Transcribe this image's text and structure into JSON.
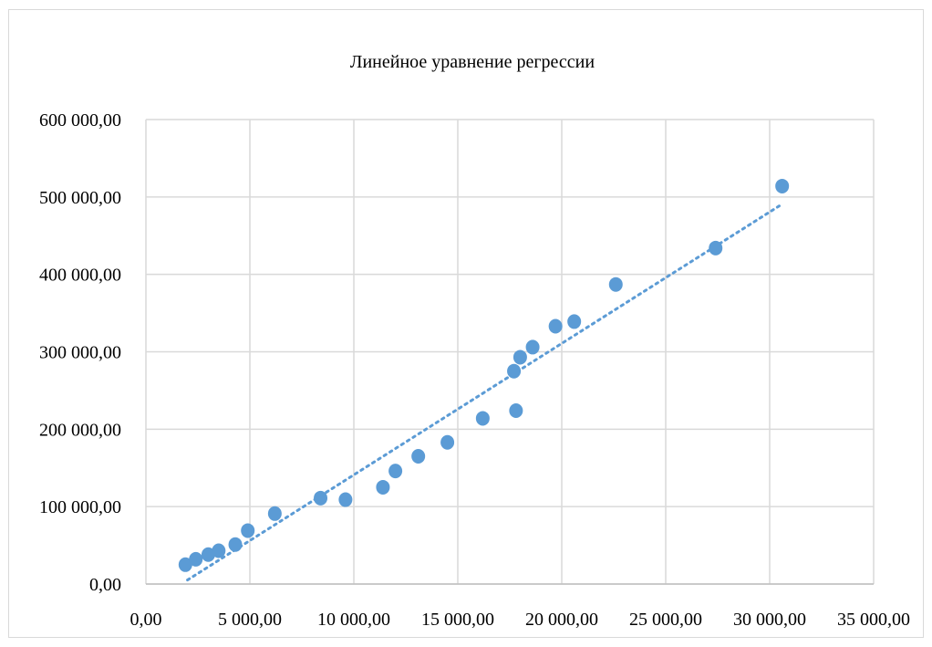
{
  "chart_data": {
    "type": "scatter",
    "title": "Линейное уравнение регрессии",
    "xlabel": "",
    "ylabel": "",
    "xlim": [
      0,
      35000
    ],
    "ylim": [
      0,
      600000
    ],
    "x_ticks": [
      0,
      5000,
      10000,
      15000,
      20000,
      25000,
      30000,
      35000
    ],
    "x_tick_labels": [
      "0,00",
      "5 000,00",
      "10 000,00",
      "15 000,00",
      "20 000,00",
      "25 000,00",
      "30 000,00",
      "35 000,00"
    ],
    "y_ticks": [
      0,
      100000,
      200000,
      300000,
      400000,
      500000,
      600000
    ],
    "y_tick_labels": [
      "0,00",
      "100 000,00",
      "200 000,00",
      "300 000,00",
      "400 000,00",
      "500 000,00",
      "600 000,00"
    ],
    "grid": true,
    "legend": "none",
    "series": [
      {
        "marker_color": "#5b9bd5",
        "x": [
          1900,
          2400,
          3000,
          3500,
          4300,
          4900,
          6200,
          8400,
          9600,
          11400,
          12000,
          13100,
          14500,
          16200,
          17700,
          17800,
          18000,
          18600,
          19700,
          20600,
          22600,
          27400,
          30600
        ],
        "y": [
          25000,
          32000,
          38000,
          43000,
          51000,
          69000,
          91000,
          111000,
          109000,
          125000,
          146000,
          165000,
          183000,
          214000,
          275000,
          224000,
          293000,
          306000,
          333000,
          339000,
          387000,
          434000,
          514000
        ]
      }
    ],
    "trendline": {
      "type": "linear",
      "style": "dotted",
      "color": "#5b9bd5",
      "x_start": 2000,
      "x_end": 30500
    }
  }
}
